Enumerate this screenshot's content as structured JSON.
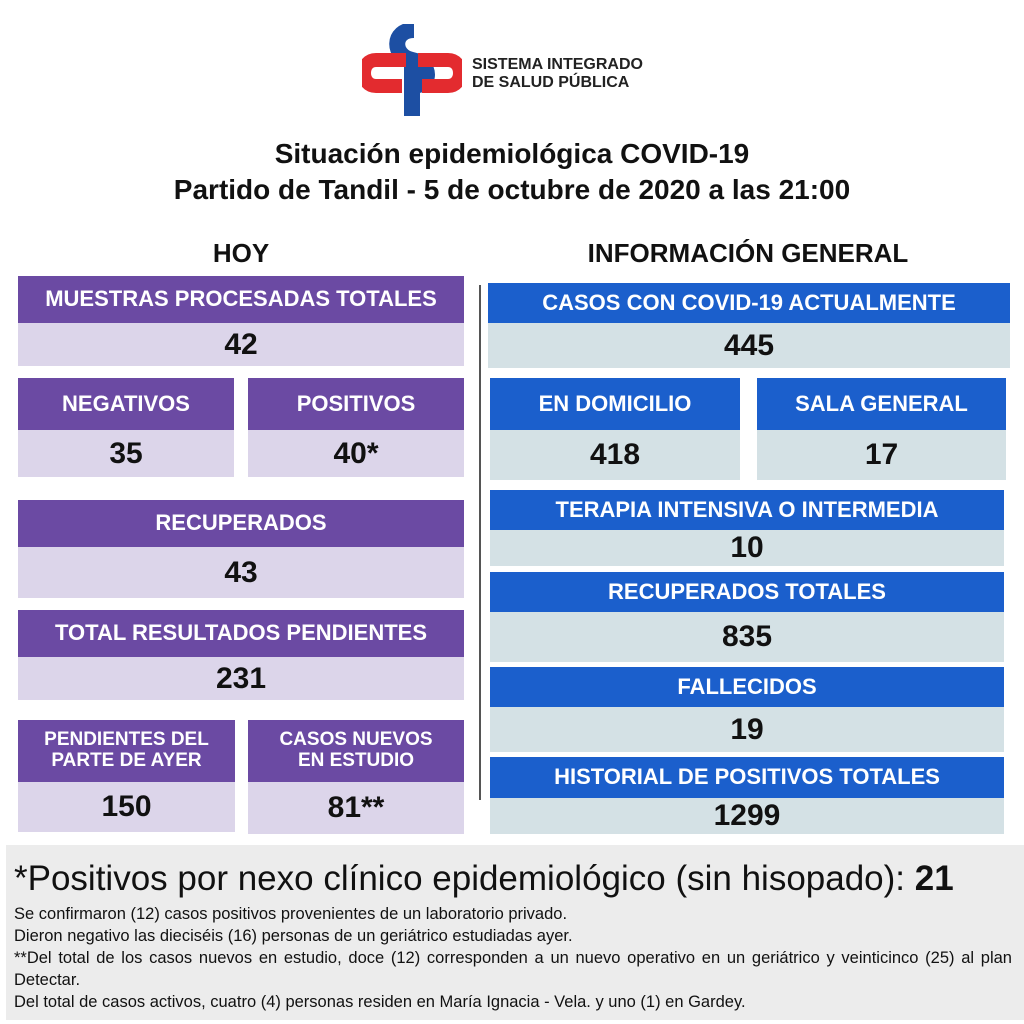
{
  "logo": {
    "line1": "SISTEMA INTEGRADO",
    "line2": "DE SALUD PÚBLICA",
    "colors": {
      "red": "#e32b2f",
      "blue": "#1d4fa3"
    }
  },
  "title": {
    "line1": "Situación epidemiológica COVID-19",
    "line2": "Partido de Tandil - 5 de octubre de 2020 a las 21:00"
  },
  "hoy": {
    "heading": "HOY",
    "muestras": {
      "label": "MUESTRAS PROCESADAS TOTALES",
      "value": "42"
    },
    "negativos": {
      "label": "NEGATIVOS",
      "value": "35"
    },
    "positivos": {
      "label": "POSITIVOS",
      "value": "40*"
    },
    "recuperados": {
      "label": "RECUPERADOS",
      "value": "43"
    },
    "pendientes": {
      "label": "TOTAL RESULTADOS PENDIENTES",
      "value": "231"
    },
    "pendientes_ayer": {
      "label": "PENDIENTES DEL PARTE DE  AYER",
      "value": "150"
    },
    "nuevos_estudio": {
      "label": "CASOS NUEVOS EN ESTUDIO",
      "value": "81**"
    }
  },
  "general": {
    "heading": "INFORMACIÓN GENERAL",
    "actuales": {
      "label": "CASOS CON COVID-19 ACTUALMENTE",
      "value": "445"
    },
    "domicilio": {
      "label": "EN DOMICILIO",
      "value": "418"
    },
    "sala": {
      "label": "SALA GENERAL",
      "value": "17"
    },
    "terapia": {
      "label": "TERAPIA INTENSIVA O INTERMEDIA",
      "value": "10"
    },
    "recuperados": {
      "label": "RECUPERADOS TOTALES",
      "value": "835"
    },
    "fallecidos": {
      "label": "FALLECIDOS",
      "value": "19"
    },
    "historial": {
      "label": "HISTORIAL DE POSITIVOS TOTALES",
      "value": "1299"
    }
  },
  "notes": {
    "headline": "*Positivos por nexo clínico epidemiológico (sin hisopado): ",
    "headline_value": "21",
    "lines": [
      "Se confirmaron (12) casos positivos provenientes de un laboratorio privado.",
      "Dieron negativo las dieciséis (16) personas de un geriátrico estudiadas ayer.",
      "**Del total de los casos nuevos en estudio, doce (12) corresponden a un nuevo operativo en un geriátrico y veinticinco (25) al plan Detectar.",
      "Del total de casos activos, cuatro (4) personas residen en María Ignacia - Vela. y uno (1) en Gardey."
    ]
  }
}
